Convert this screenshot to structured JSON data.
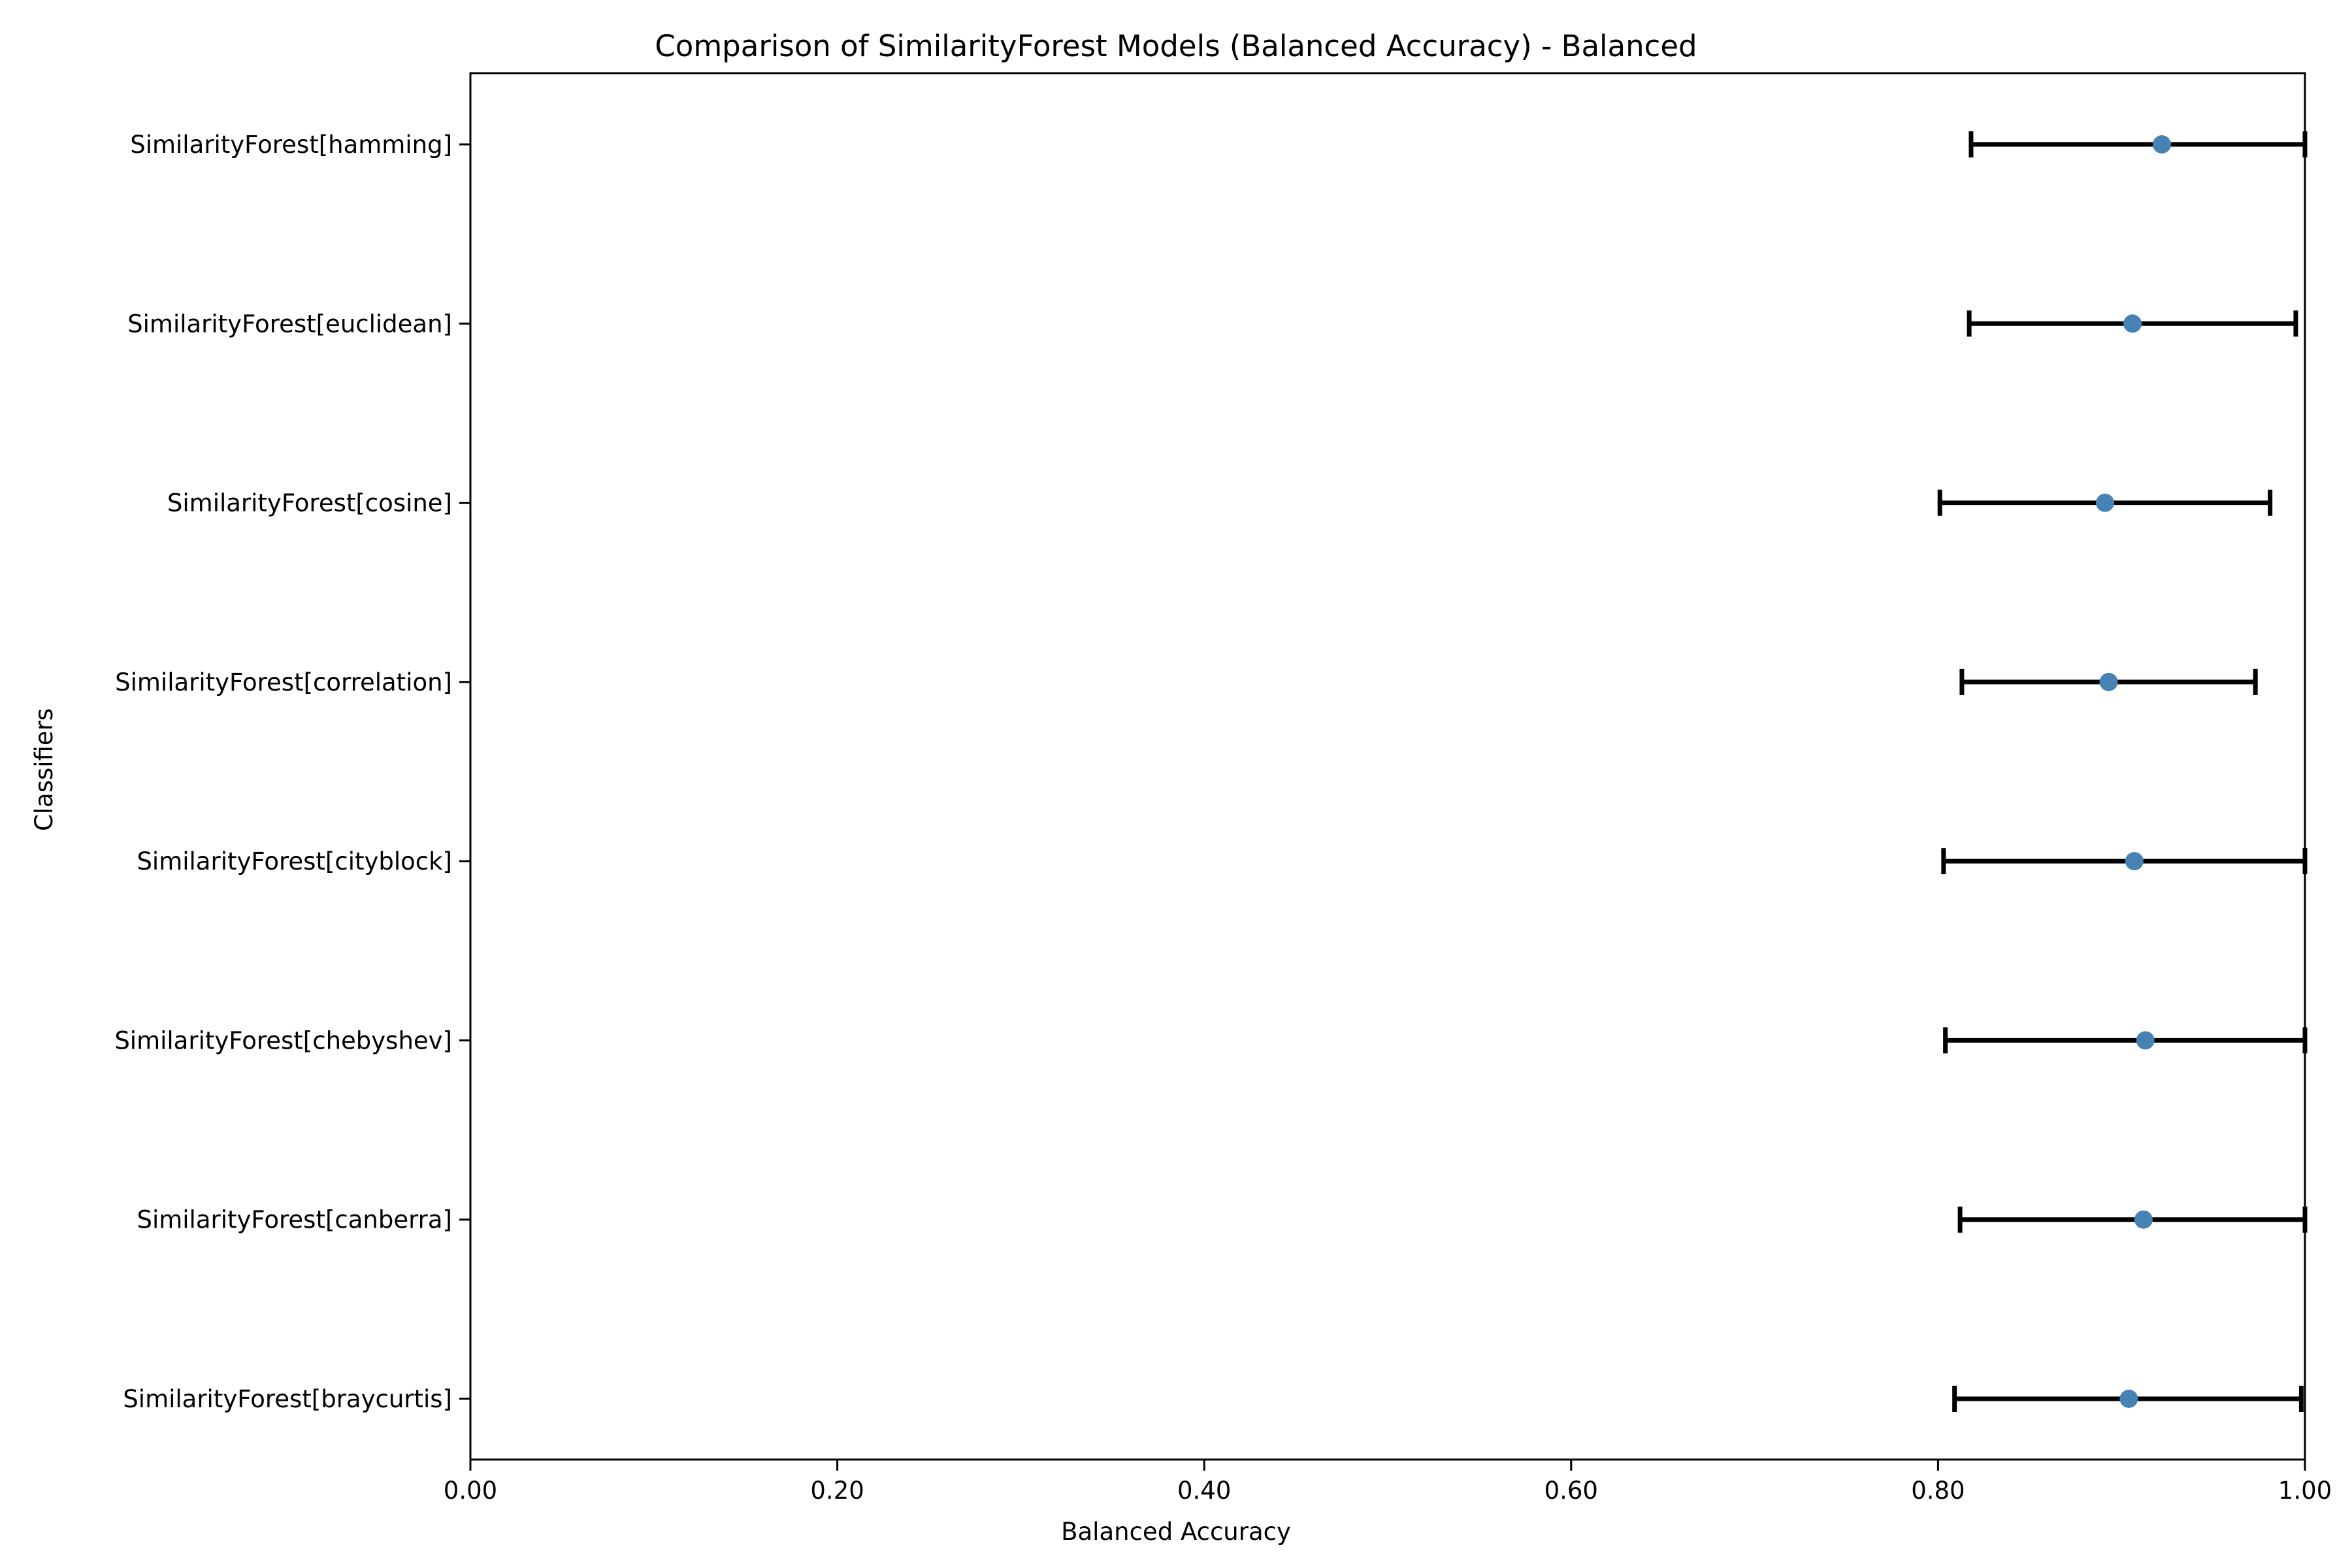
{
  "chart_data": {
    "type": "errorbar",
    "title": "Comparison of SimilarityForest Models (Balanced Accuracy) - Balanced",
    "xlabel": "Balanced Accuracy",
    "ylabel": "Classifiers",
    "xlim": [
      0.0,
      1.0
    ],
    "xticks": [
      "0.00",
      "0.20",
      "0.40",
      "0.60",
      "0.80",
      "1.00"
    ],
    "grid": false,
    "categories": [
      "SimilarityForest[braycurtis]",
      "SimilarityForest[canberra]",
      "SimilarityForest[chebyshev]",
      "SimilarityForest[cityblock]",
      "SimilarityForest[correlation]",
      "SimilarityForest[cosine]",
      "SimilarityForest[euclidean]",
      "SimilarityForest[hamming]"
    ],
    "series": [
      {
        "mean": [
          0.904,
          0.912,
          0.913,
          0.907,
          0.893,
          0.891,
          0.906,
          0.922
        ],
        "lower": [
          0.809,
          0.812,
          0.804,
          0.803,
          0.813,
          0.801,
          0.817,
          0.818
        ],
        "upper": [
          0.998,
          1.0,
          1.0,
          1.0,
          0.973,
          0.981,
          0.995,
          1.0
        ]
      }
    ],
    "colors": {
      "marker": "#4682b4",
      "errorbar": "#000000",
      "axis": "#000000"
    }
  }
}
